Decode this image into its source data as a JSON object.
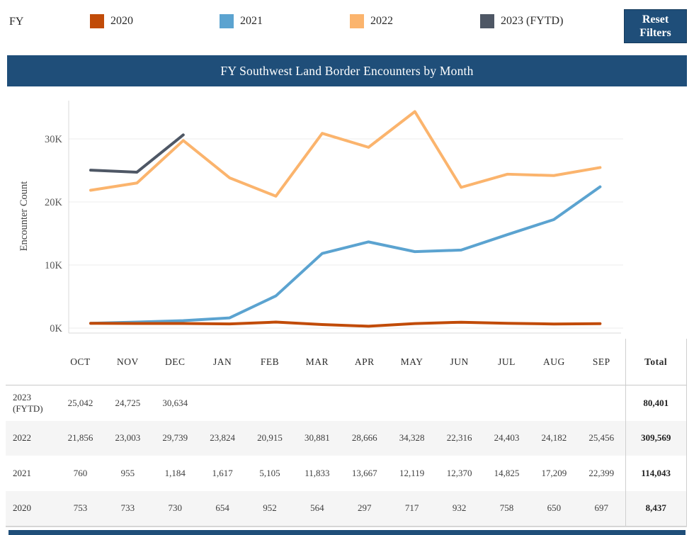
{
  "filter_bar": {
    "fy_label": "FY",
    "legend": [
      {
        "label": "2020",
        "color": "#c14b08"
      },
      {
        "label": "2021",
        "color": "#5ba3d0"
      },
      {
        "label": "2022",
        "color": "#fbb46d"
      },
      {
        "label": "2023 (FYTD)",
        "color": "#4e5765"
      }
    ],
    "reset_button": "Reset Filters"
  },
  "title_bar": {
    "title": "FY Southwest Land Border Encounters by Month",
    "background": "#1f4e79"
  },
  "chart_data": {
    "type": "line",
    "title": "FY Southwest Land Border Encounters by Month",
    "xlabel": "",
    "ylabel": "Encounter Count",
    "yticks": [
      "0K",
      "10K",
      "20K",
      "30K"
    ],
    "ylim": [
      0,
      36000
    ],
    "grid": true,
    "legend_position": "top",
    "categories": [
      "OCT",
      "NOV",
      "DEC",
      "JAN",
      "FEB",
      "MAR",
      "APR",
      "MAY",
      "JUN",
      "JUL",
      "AUG",
      "SEP"
    ],
    "series": [
      {
        "name": "2020",
        "color": "#c14b08",
        "values": [
          753,
          733,
          730,
          654,
          952,
          564,
          297,
          717,
          932,
          758,
          650,
          697
        ]
      },
      {
        "name": "2021",
        "color": "#5ba3d0",
        "values": [
          760,
          955,
          1184,
          1617,
          5105,
          11833,
          13667,
          12119,
          12370,
          14825,
          17209,
          22399
        ]
      },
      {
        "name": "2022",
        "color": "#fbb46d",
        "values": [
          21856,
          23003,
          29739,
          23824,
          20915,
          30881,
          28666,
          34328,
          22316,
          24403,
          24182,
          25456
        ]
      },
      {
        "name": "2023 (FYTD)",
        "color": "#4e5765",
        "values": [
          25042,
          24725,
          30634
        ]
      }
    ]
  },
  "table": {
    "columns": [
      "OCT",
      "NOV",
      "DEC",
      "JAN",
      "FEB",
      "MAR",
      "APR",
      "MAY",
      "JUN",
      "JUL",
      "AUG",
      "SEP"
    ],
    "total_label": "Total",
    "rows": [
      {
        "year": "2023 (FYTD)",
        "values": [
          "25,042",
          "24,725",
          "30,634",
          "",
          "",
          "",
          "",
          "",
          "",
          "",
          "",
          ""
        ],
        "total": "80,401"
      },
      {
        "year": "2022",
        "values": [
          "21,856",
          "23,003",
          "29,739",
          "23,824",
          "20,915",
          "30,881",
          "28,666",
          "34,328",
          "22,316",
          "24,403",
          "24,182",
          "25,456"
        ],
        "total": "309,569"
      },
      {
        "year": "2021",
        "values": [
          "760",
          "955",
          "1,184",
          "1,617",
          "5,105",
          "11,833",
          "13,667",
          "12,119",
          "12,370",
          "14,825",
          "17,209",
          "22,399"
        ],
        "total": "114,043"
      },
      {
        "year": "2020",
        "values": [
          "753",
          "733",
          "730",
          "654",
          "952",
          "564",
          "297",
          "717",
          "932",
          "758",
          "650",
          "697"
        ],
        "total": "8,437"
      }
    ]
  }
}
